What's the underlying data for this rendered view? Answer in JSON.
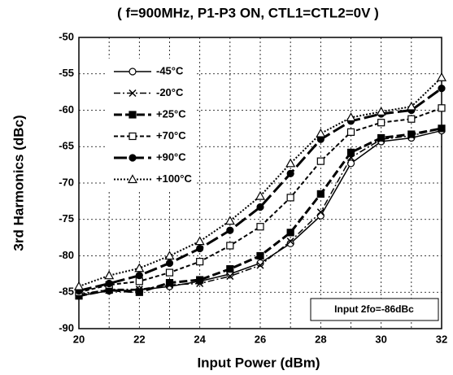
{
  "chart_data": {
    "type": "line",
    "title": "( f=900MHz, P1-P3 ON, CTL1=CTL2=0V )",
    "xlabel": "Input Power (dBm)",
    "ylabel": "3rd Harmonics (dBc)",
    "annotation": "Input 2fo=-86dBc",
    "x": [
      20,
      21,
      22,
      23,
      24,
      25,
      26,
      27,
      28,
      29,
      30,
      31,
      32
    ],
    "xlim": [
      20,
      32
    ],
    "xticks": [
      20,
      22,
      24,
      26,
      28,
      30,
      32
    ],
    "xgrid_minor": [
      21,
      23,
      25,
      27,
      29,
      31
    ],
    "ylim": [
      -90,
      -50
    ],
    "yticks": [
      -90,
      -85,
      -80,
      -75,
      -70,
      -65,
      -60,
      -55,
      -50
    ],
    "grid": true,
    "legend": "upper left",
    "series": [
      {
        "name": "-45°C",
        "color": "#000000",
        "marker": "circle-open",
        "linestyle": "solid",
        "width": 1.5,
        "values": [
          -85.5,
          -84.8,
          -84.7,
          -84.2,
          -83.5,
          -82.5,
          -81,
          -78.3,
          -74.5,
          -67.3,
          -64.3,
          -63.8,
          -62.8
        ]
      },
      {
        "name": "-20°C",
        "color": "#000000",
        "marker": "x",
        "linestyle": "dashdot",
        "width": 1.5,
        "values": [
          -85.3,
          -84.6,
          -84.6,
          -84,
          -83.8,
          -82.8,
          -81.3,
          -78,
          -74,
          -66.5,
          -64,
          -63.5,
          -62.5
        ]
      },
      {
        "name": "+25°C",
        "color": "#000000",
        "marker": "square-filled",
        "linestyle": "dash",
        "width": 3,
        "values": [
          -85.5,
          -84.7,
          -85,
          -83.7,
          -83.3,
          -81.8,
          -80,
          -76.8,
          -71.5,
          -65.8,
          -63.8,
          -63.3,
          -62.5
        ]
      },
      {
        "name": "+70°C",
        "color": "#000000",
        "marker": "square-open",
        "linestyle": "shortdash",
        "width": 2,
        "values": [
          -85,
          -84,
          -83.5,
          -82.3,
          -80.8,
          -78.6,
          -76,
          -72,
          -67,
          -63,
          -61.7,
          -61.2,
          -59.7
        ]
      },
      {
        "name": "+90°C",
        "color": "#000000",
        "marker": "circle-filled",
        "linestyle": "longdash",
        "width": 3,
        "values": [
          -84.8,
          -83.8,
          -82.7,
          -81,
          -79,
          -76.5,
          -73.3,
          -68.7,
          -64,
          -61.5,
          -60.5,
          -60,
          -57
        ]
      },
      {
        "name": "+100°C",
        "color": "#000000",
        "marker": "triangle-open",
        "linestyle": "dot",
        "width": 2,
        "values": [
          -84.2,
          -82.7,
          -81.7,
          -80,
          -78,
          -75.2,
          -71.8,
          -67.3,
          -63.2,
          -61,
          -60.2,
          -59.5,
          -55.5
        ]
      }
    ]
  }
}
